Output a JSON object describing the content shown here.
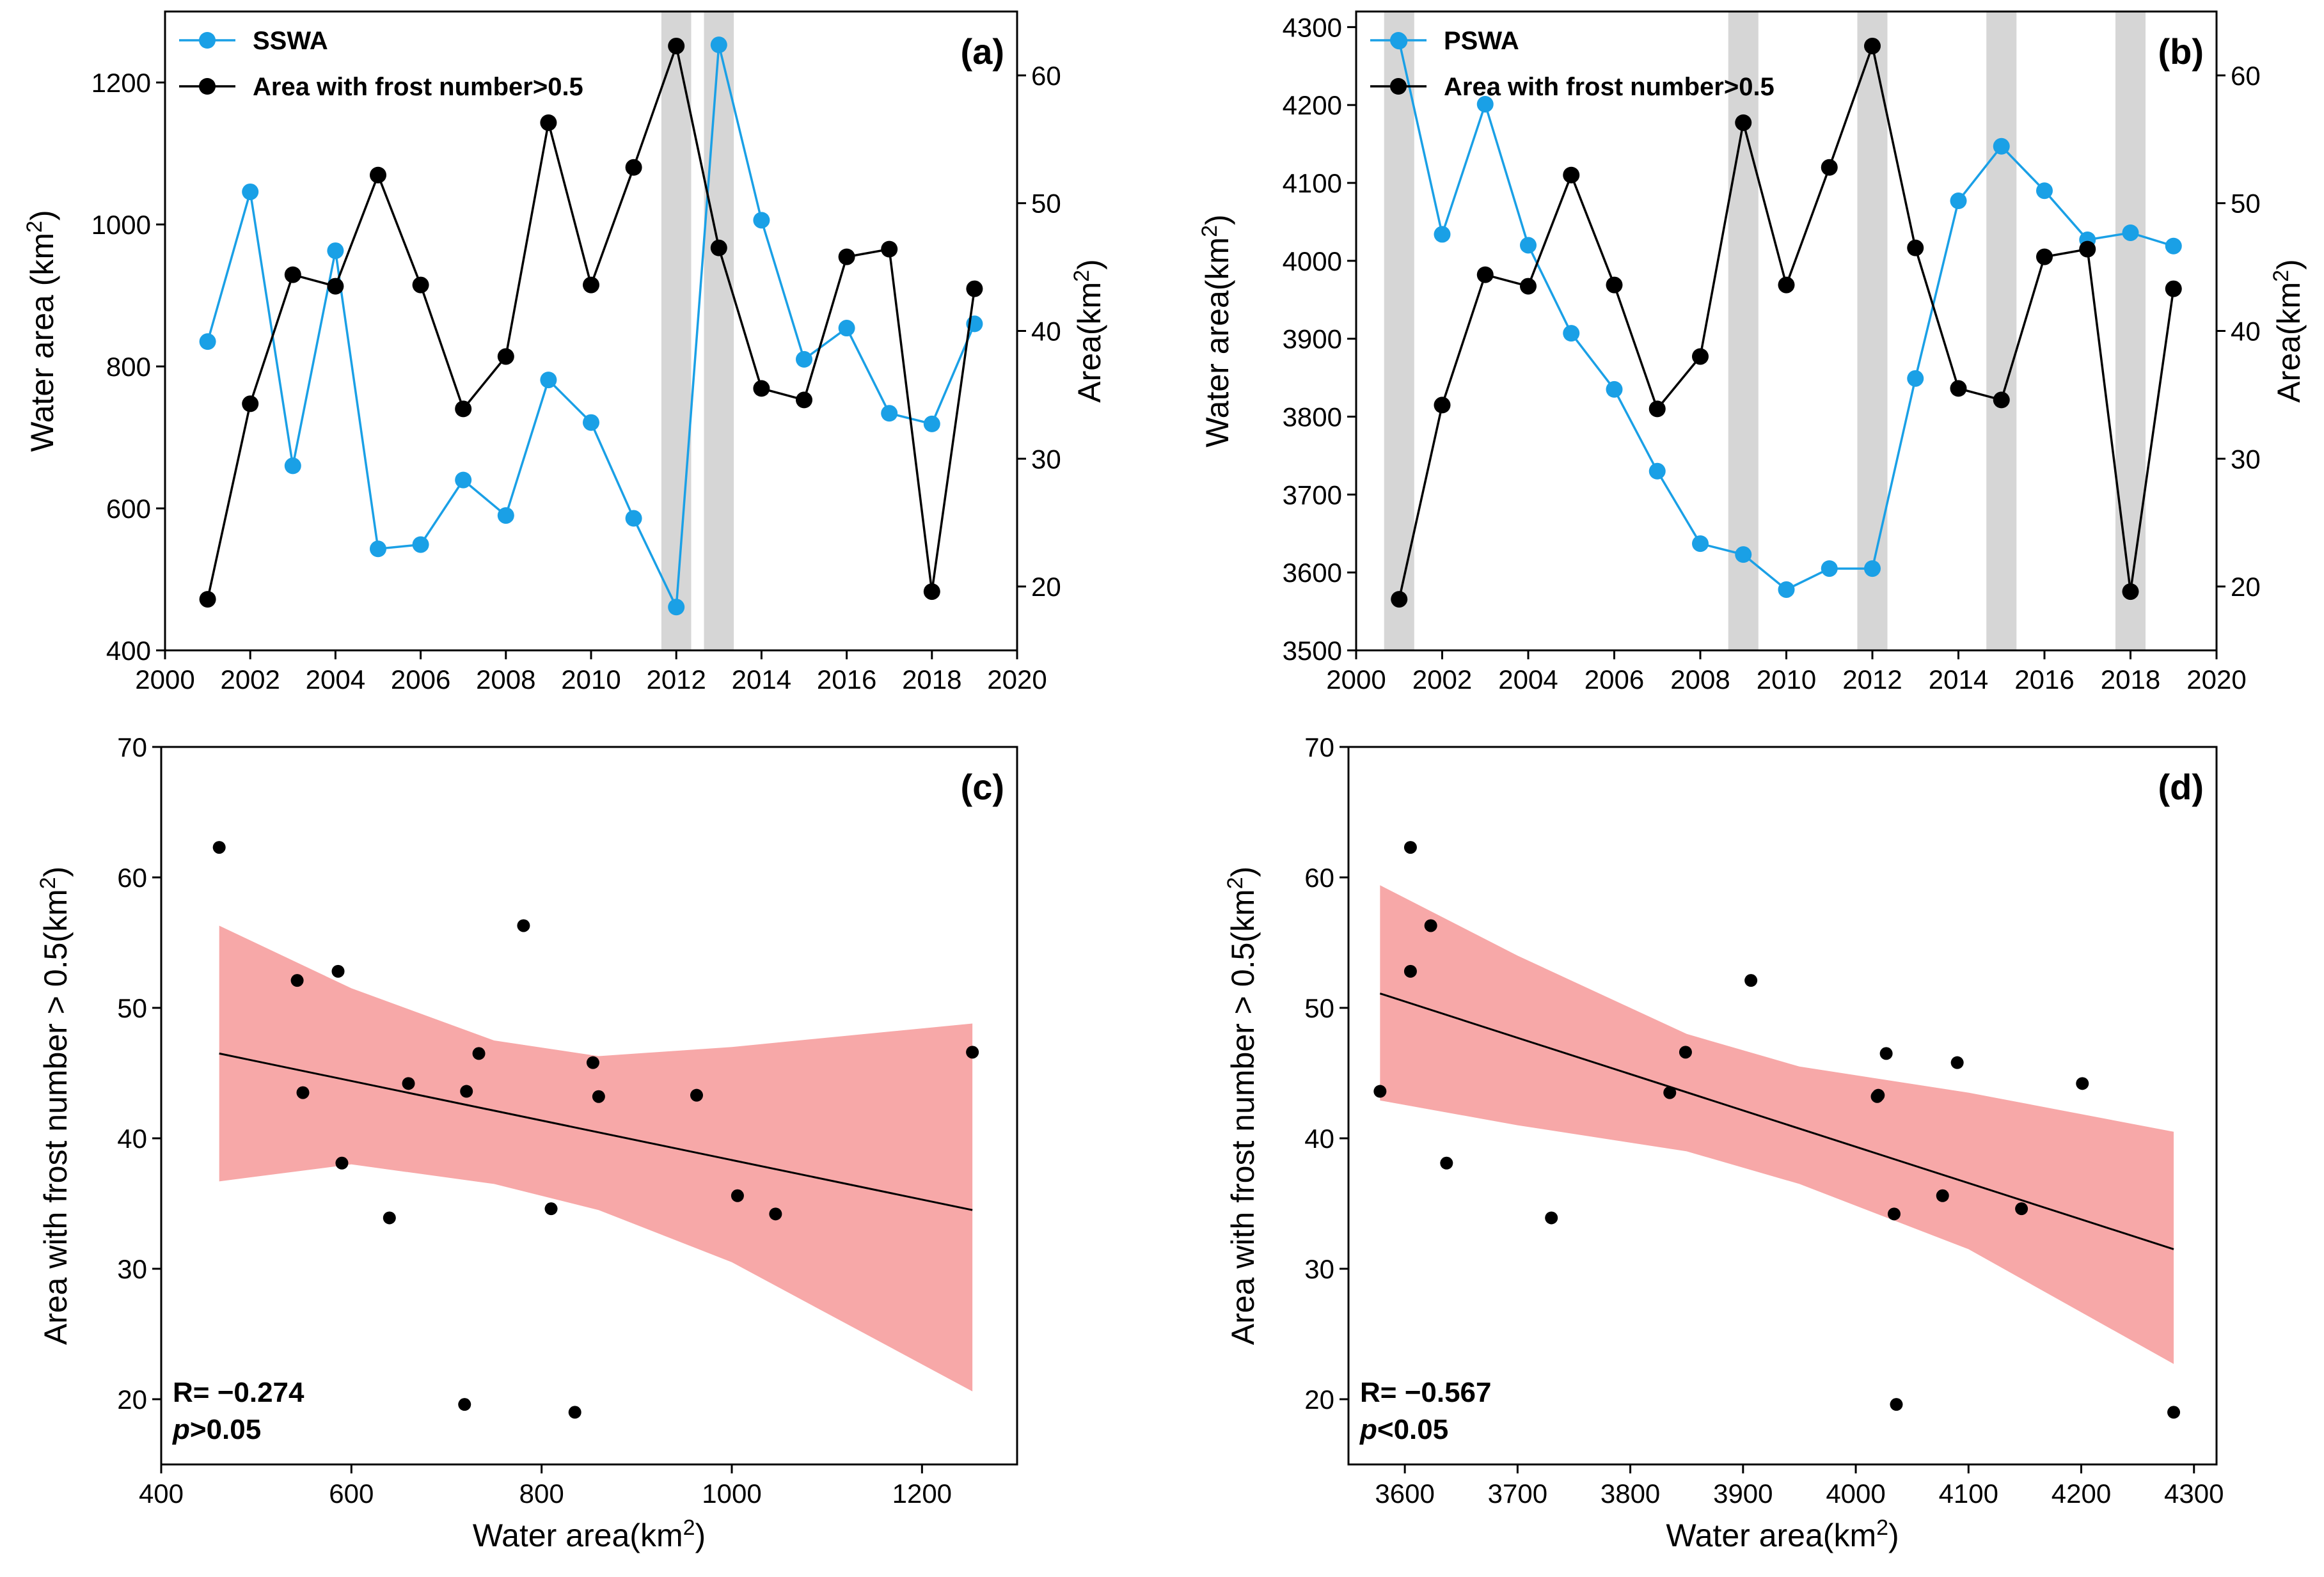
{
  "chart_data": [
    {
      "panel": "(a)",
      "type": "line",
      "x": [
        2001,
        2002,
        2003,
        2004,
        2005,
        2006,
        2007,
        2008,
        2009,
        2010,
        2011,
        2012,
        2013,
        2014,
        2015,
        2016,
        2017,
        2018,
        2019
      ],
      "series": [
        {
          "name": "SSWA",
          "axis": "left",
          "color": "#1aa0e6",
          "values": [
            835,
            1046,
            660,
            963,
            543,
            549,
            640,
            590,
            781,
            721,
            586,
            461,
            1253,
            1006,
            810,
            854,
            734,
            719,
            860
          ]
        },
        {
          "name": "Area with frost number>0.5",
          "axis": "right",
          "color": "#000000",
          "values": [
            19.0,
            34.3,
            44.4,
            43.5,
            52.2,
            43.6,
            33.9,
            38.0,
            56.3,
            43.6,
            52.8,
            62.3,
            46.5,
            35.5,
            34.6,
            45.8,
            46.4,
            19.6,
            43.3
          ]
        }
      ],
      "shaded_years": [
        2012,
        2013
      ],
      "xlim": [
        2000,
        2020
      ],
      "xticks": [
        "2000",
        "2002",
        "2004",
        "2006",
        "2008",
        "2010",
        "2012",
        "2014",
        "2016",
        "2018",
        "2020"
      ],
      "ylim_left": [
        400,
        1300
      ],
      "yticks_left": [
        "400",
        "600",
        "800",
        "1000",
        "1200"
      ],
      "ylim_right": [
        15,
        65
      ],
      "yticks_right": [
        "20",
        "30",
        "40",
        "50",
        "60"
      ],
      "ylabel_left": "Water area (km",
      "ylabel_right": "Area(km",
      "sup": "2",
      "close": ")"
    },
    {
      "panel": "(b)",
      "type": "line",
      "x": [
        2001,
        2002,
        2003,
        2004,
        2005,
        2006,
        2007,
        2008,
        2009,
        2010,
        2011,
        2012,
        2013,
        2014,
        2015,
        2016,
        2017,
        2018,
        2019
      ],
      "series": [
        {
          "name": "PSWA",
          "axis": "left",
          "color": "#1aa0e6",
          "values": [
            4282,
            4034,
            4201,
            4020,
            3907,
            3835,
            3730,
            3637,
            3623,
            3578,
            3605,
            3605,
            3849,
            4077,
            4147,
            4090,
            4027,
            4036,
            4019
          ]
        },
        {
          "name": "Area with frost number>0.5",
          "axis": "right",
          "color": "#000000",
          "values": [
            19.0,
            34.2,
            44.4,
            43.5,
            52.2,
            43.6,
            33.9,
            38.0,
            56.3,
            43.6,
            52.8,
            62.3,
            46.5,
            35.5,
            34.6,
            45.8,
            46.4,
            19.6,
            43.3
          ]
        }
      ],
      "shaded_years": [
        2001,
        2009,
        2012,
        2015,
        2018
      ],
      "xlim": [
        2000,
        2020
      ],
      "xticks": [
        "2000",
        "2002",
        "2004",
        "2006",
        "2008",
        "2010",
        "2012",
        "2014",
        "2016",
        "2018",
        "2020"
      ],
      "ylim_left": [
        3500,
        4320
      ],
      "yticks_left": [
        "3500",
        "3600",
        "3700",
        "3800",
        "3900",
        "4000",
        "4100",
        "4200",
        "4300"
      ],
      "ylim_right": [
        15,
        65
      ],
      "yticks_right": [
        "20",
        "30",
        "40",
        "50",
        "60"
      ],
      "ylabel_left": "Water area(km",
      "ylabel_right": "Area(km",
      "sup": "2",
      "close": ")"
    },
    {
      "panel": "(c)",
      "type": "scatter",
      "points": [
        [
          835,
          19.0
        ],
        [
          1046,
          34.2
        ],
        [
          660,
          44.2
        ],
        [
          963,
          43.3
        ],
        [
          543,
          52.1
        ],
        [
          549,
          43.5
        ],
        [
          640,
          33.9
        ],
        [
          590,
          38.1
        ],
        [
          781,
          56.3
        ],
        [
          721,
          43.6
        ],
        [
          586,
          52.8
        ],
        [
          461,
          62.3
        ],
        [
          1253,
          46.6
        ],
        [
          1006,
          35.6
        ],
        [
          810,
          34.6
        ],
        [
          854,
          45.8
        ],
        [
          734,
          46.5
        ],
        [
          719,
          19.6
        ],
        [
          860,
          43.2
        ]
      ],
      "fit_line": [
        [
          461,
          46.5
        ],
        [
          1253,
          34.5
        ]
      ],
      "ci_upper": [
        [
          461,
          56.3
        ],
        [
          600,
          51.5
        ],
        [
          750,
          47.5
        ],
        [
          860,
          46.3
        ],
        [
          1000,
          47.0
        ],
        [
          1253,
          48.8
        ]
      ],
      "ci_lower": [
        [
          461,
          36.7
        ],
        [
          600,
          38.0
        ],
        [
          750,
          36.5
        ],
        [
          860,
          34.5
        ],
        [
          1000,
          30.5
        ],
        [
          1253,
          20.6
        ]
      ],
      "ci_color": "#f7a8a8",
      "xlim": [
        400,
        1300
      ],
      "xticks": [
        "400",
        "600",
        "800",
        "1000",
        "1200"
      ],
      "ylim": [
        15,
        70
      ],
      "yticks": [
        "20",
        "30",
        "40",
        "50",
        "60",
        "70"
      ],
      "xlabel": "Water area(km",
      "ylabel": "Area with frost number > 0.5(km",
      "sup": "2",
      "close": ")",
      "r_text": "R= −0.274",
      "p_italic": "p",
      "p_rest": ">0.05"
    },
    {
      "panel": "(d)",
      "type": "scatter",
      "points": [
        [
          4282,
          19.0
        ],
        [
          4034,
          34.2
        ],
        [
          4201,
          44.2
        ],
        [
          4020,
          43.3
        ],
        [
          3907,
          52.1
        ],
        [
          3835,
          43.5
        ],
        [
          3730,
          33.9
        ],
        [
          3637,
          38.1
        ],
        [
          3623,
          56.3
        ],
        [
          3578,
          43.6
        ],
        [
          3605,
          52.8
        ],
        [
          3605,
          62.3
        ],
        [
          3849,
          46.6
        ],
        [
          4077,
          35.6
        ],
        [
          4147,
          34.6
        ],
        [
          4090,
          45.8
        ],
        [
          4027,
          46.5
        ],
        [
          4036,
          19.6
        ],
        [
          4019,
          43.2
        ]
      ],
      "fit_line": [
        [
          3578,
          51.1
        ],
        [
          4282,
          31.5
        ]
      ],
      "ci_upper": [
        [
          3578,
          59.4
        ],
        [
          3700,
          54.0
        ],
        [
          3850,
          48.0
        ],
        [
          3950,
          45.5
        ],
        [
          4100,
          43.5
        ],
        [
          4282,
          40.5
        ]
      ],
      "ci_lower": [
        [
          3578,
          42.9
        ],
        [
          3700,
          41.0
        ],
        [
          3850,
          39.0
        ],
        [
          3950,
          36.5
        ],
        [
          4100,
          31.5
        ],
        [
          4282,
          22.7
        ]
      ],
      "ci_color": "#f7a8a8",
      "xlim": [
        3550,
        4320
      ],
      "xticks": [
        "3600",
        "3700",
        "3800",
        "3900",
        "4000",
        "4100",
        "4200",
        "4300"
      ],
      "ylim": [
        15,
        70
      ],
      "yticks": [
        "20",
        "30",
        "40",
        "50",
        "60",
        "70"
      ],
      "xlabel": "Water area(km",
      "ylabel": "Area with frost number > 0.5(km",
      "sup": "2",
      "close": ")",
      "r_text": "R= −0.567",
      "p_italic": "p",
      "p_rest": "<0.05"
    }
  ]
}
